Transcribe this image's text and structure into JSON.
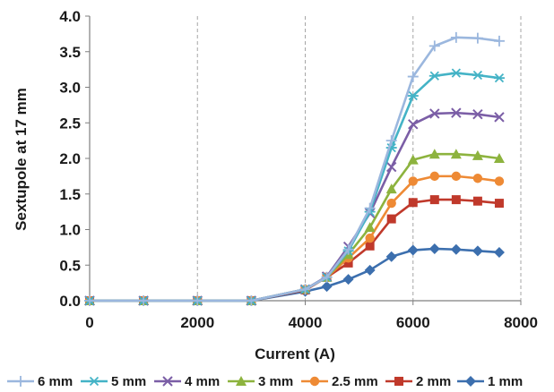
{
  "chart_data": {
    "type": "line",
    "title": "",
    "xlabel": "Current (A)",
    "ylabel": "Sextupole at 17 mm",
    "xlim": [
      0,
      8000
    ],
    "ylim": [
      0,
      4.0
    ],
    "x_ticks": [
      "0",
      "2000",
      "4000",
      "6000",
      "8000"
    ],
    "y_ticks": [
      "0.0",
      "0.5",
      "1.0",
      "1.5",
      "2.0",
      "2.5",
      "3.0",
      "3.5",
      "4.0"
    ],
    "grid": {
      "vertical": true,
      "horizontal": false
    },
    "legend_position": "bottom",
    "x": [
      0,
      1000,
      2000,
      3000,
      4000,
      4400,
      4800,
      5200,
      5600,
      6000,
      6400,
      6800,
      7200,
      7600
    ],
    "series": [
      {
        "name": "6 mm",
        "color": "#9bb7de",
        "marker": "plus",
        "values": [
          0,
          0,
          0,
          0,
          0.16,
          0.33,
          0.72,
          1.3,
          2.25,
          3.15,
          3.58,
          3.7,
          3.69,
          3.65
        ]
      },
      {
        "name": "5 mm",
        "color": "#44b3c6",
        "marker": "star",
        "values": [
          0,
          0,
          0,
          0,
          0.16,
          0.33,
          0.7,
          1.25,
          2.15,
          2.88,
          3.16,
          3.2,
          3.17,
          3.13
        ]
      },
      {
        "name": "4 mm",
        "color": "#7b5ea6",
        "marker": "x",
        "values": [
          0,
          0,
          0,
          0,
          0.16,
          0.34,
          0.76,
          1.23,
          1.88,
          2.48,
          2.63,
          2.64,
          2.62,
          2.58
        ]
      },
      {
        "name": "3 mm",
        "color": "#8db33e",
        "marker": "triangle",
        "values": [
          0,
          0,
          0,
          0,
          0.16,
          0.33,
          0.65,
          1.03,
          1.57,
          1.98,
          2.06,
          2.06,
          2.04,
          2.0
        ]
      },
      {
        "name": "2.5 mm",
        "color": "#ee8a35",
        "marker": "circle",
        "values": [
          0,
          0,
          0,
          0,
          0.16,
          0.33,
          0.6,
          0.88,
          1.37,
          1.68,
          1.75,
          1.75,
          1.72,
          1.68
        ]
      },
      {
        "name": "2 mm",
        "color": "#c0392b",
        "marker": "square",
        "values": [
          0,
          0,
          0,
          0,
          0.15,
          0.33,
          0.53,
          0.77,
          1.15,
          1.38,
          1.42,
          1.42,
          1.4,
          1.37
        ]
      },
      {
        "name": "1 mm",
        "color": "#3c6fae",
        "marker": "diamond",
        "values": [
          0,
          0,
          0,
          0,
          0.13,
          0.2,
          0.3,
          0.43,
          0.62,
          0.71,
          0.73,
          0.72,
          0.7,
          0.68
        ]
      }
    ]
  }
}
